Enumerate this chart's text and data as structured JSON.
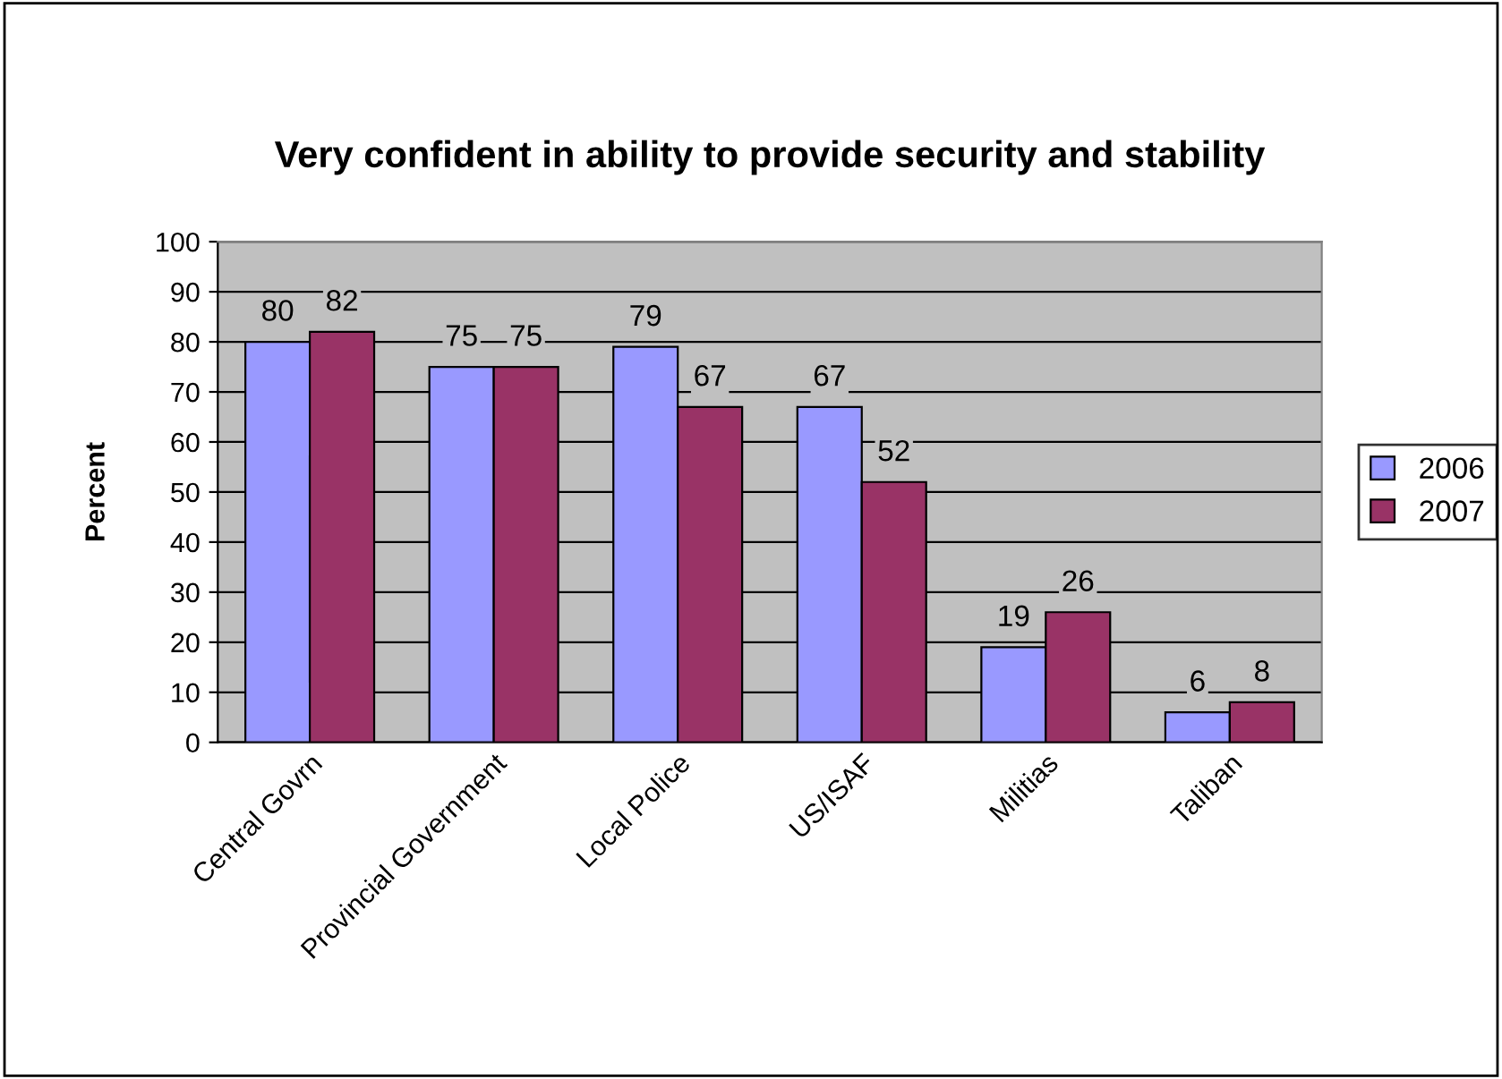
{
  "chart_data": {
    "type": "bar",
    "title": "Very confident in ability to provide security and stability",
    "ylabel": "Percent",
    "categories": [
      "Central Govrn",
      "Provincial Government",
      "Local Police",
      "US/ISAF",
      "Militias",
      "Taliban"
    ],
    "series": [
      {
        "name": "2006",
        "color": "#9999ff",
        "values": [
          80,
          75,
          79,
          67,
          19,
          6
        ]
      },
      {
        "name": "2007",
        "color": "#993366",
        "values": [
          82,
          75,
          67,
          52,
          26,
          8
        ]
      }
    ],
    "ylim": [
      0,
      100
    ],
    "yticks": [
      0,
      10,
      20,
      30,
      40,
      50,
      60,
      70,
      80,
      90,
      100
    ],
    "grid": "y",
    "legend": "right",
    "data_labels": true
  }
}
